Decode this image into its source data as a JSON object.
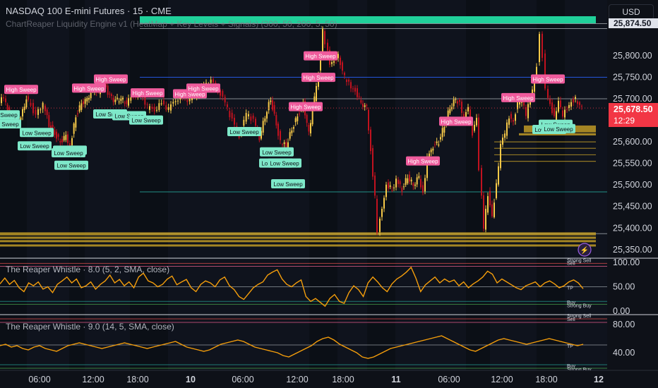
{
  "header": {
    "title": "NASDAQ 100 E-mini Futures · 15 · CME",
    "study": "ChartReaper Liquidity Engine v1 (HeatMap + Key Levels + Signals) (300, 50, 200, 5, 50)",
    "currency": "USD"
  },
  "colors": {
    "bg": "#0e1118",
    "session": "#131a2b",
    "up": "#f7c948",
    "down": "#c1121f",
    "high_sweep": "#ef5b9c",
    "low_sweep": "#7ee8c9",
    "osc_line": "#f59e0b",
    "level_gold": "#c9a227"
  },
  "price_axis": {
    "ticks": [
      "25,874.50",
      "25,800.00",
      "25,750.00",
      "25,700.00",
      "25,600.00",
      "25,550.00",
      "25,500.00",
      "25,450.00",
      "25,400.00",
      "25,350.00"
    ],
    "current_price": "25,678.50",
    "countdown": "12:29"
  },
  "time_axis": {
    "labels": [
      "06:00",
      "12:00",
      "18:00",
      "10",
      "06:00",
      "12:00",
      "18:00",
      "11",
      "06:00",
      "12:00",
      "18:00",
      "12"
    ]
  },
  "oscillators": [
    {
      "title": "The Reaper Whistle · 8.0 (5, 2, SMA, close)",
      "ticks": [
        "100.00",
        "50.00",
        "0.00"
      ],
      "zone_labels": [
        "Strong Sell",
        "Sell",
        "TP",
        "Buy",
        "Strong Buy"
      ]
    },
    {
      "title": "The Reaper Whistle · 9.0 (14, 5, SMA, close)",
      "ticks": [
        "80.00",
        "40.00"
      ],
      "zone_labels": [
        "Strong Sell",
        "Sell",
        "TP",
        "Buy",
        "Strong Buy"
      ]
    }
  ],
  "chart_data": {
    "type": "candlestick",
    "title": "NASDAQ 100 E-mini Futures · 15 · CME",
    "ylim": [
      25330,
      25890
    ],
    "current_price": 25678.5,
    "key_levels": [
      25874.5,
      25863,
      25750,
      25700,
      25484,
      25387
    ],
    "price_path": [
      [
        0,
        25690
      ],
      [
        6,
        25705
      ],
      [
        14,
        25660
      ],
      [
        22,
        25640
      ],
      [
        30,
        25655
      ],
      [
        38,
        25700
      ],
      [
        45,
        25685
      ],
      [
        52,
        25660
      ],
      [
        62,
        25690
      ],
      [
        70,
        25640
      ],
      [
        78,
        25620
      ],
      [
        86,
        25600
      ],
      [
        94,
        25615
      ],
      [
        100,
        25590
      ],
      [
        108,
        25660
      ],
      [
        116,
        25690
      ],
      [
        124,
        25700
      ],
      [
        132,
        25720
      ],
      [
        140,
        25715
      ],
      [
        148,
        25735
      ],
      [
        156,
        25705
      ],
      [
        164,
        25695
      ],
      [
        172,
        25700
      ],
      [
        180,
        25690
      ],
      [
        190,
        25710
      ],
      [
        200,
        25715
      ],
      [
        210,
        25680
      ],
      [
        220,
        25675
      ],
      [
        230,
        25690
      ],
      [
        240,
        25675
      ],
      [
        250,
        25700
      ],
      [
        260,
        25705
      ],
      [
        270,
        25695
      ],
      [
        280,
        25710
      ],
      [
        290,
        25730
      ],
      [
        300,
        25740
      ],
      [
        310,
        25725
      ],
      [
        320,
        25690
      ],
      [
        330,
        25650
      ],
      [
        340,
        25615
      ],
      [
        350,
        25665
      ],
      [
        360,
        25650
      ],
      [
        368,
        25610
      ],
      [
        376,
        25660
      ],
      [
        384,
        25700
      ],
      [
        392,
        25640
      ],
      [
        398,
        25600
      ],
      [
        406,
        25590
      ],
      [
        414,
        25630
      ],
      [
        422,
        25660
      ],
      [
        430,
        25690
      ],
      [
        438,
        25620
      ],
      [
        446,
        25700
      ],
      [
        452,
        25760
      ],
      [
        458,
        25860
      ],
      [
        462,
        25830
      ],
      [
        468,
        25785
      ],
      [
        474,
        25790
      ],
      [
        480,
        25800
      ],
      [
        486,
        25760
      ],
      [
        492,
        25740
      ],
      [
        498,
        25730
      ],
      [
        504,
        25720
      ],
      [
        512,
        25690
      ],
      [
        520,
        25680
      ],
      [
        526,
        25580
      ],
      [
        532,
        25470
      ],
      [
        536,
        25390
      ],
      [
        542,
        25450
      ],
      [
        548,
        25500
      ],
      [
        556,
        25490
      ],
      [
        562,
        25510
      ],
      [
        570,
        25490
      ],
      [
        578,
        25520
      ],
      [
        586,
        25500
      ],
      [
        594,
        25520
      ],
      [
        600,
        25480
      ],
      [
        606,
        25560
      ],
      [
        614,
        25590
      ],
      [
        622,
        25600
      ],
      [
        630,
        25640
      ],
      [
        638,
        25680
      ],
      [
        646,
        25700
      ],
      [
        652,
        25690
      ],
      [
        658,
        25650
      ],
      [
        664,
        25680
      ],
      [
        670,
        25620
      ],
      [
        676,
        25660
      ],
      [
        680,
        25540
      ],
      [
        686,
        25400
      ],
      [
        692,
        25480
      ],
      [
        698,
        25430
      ],
      [
        704,
        25500
      ],
      [
        710,
        25590
      ],
      [
        716,
        25620
      ],
      [
        722,
        25660
      ],
      [
        728,
        25650
      ],
      [
        734,
        25690
      ],
      [
        740,
        25700
      ],
      [
        746,
        25660
      ],
      [
        752,
        25705
      ],
      [
        758,
        25740
      ],
      [
        762,
        25780
      ],
      [
        766,
        25845
      ],
      [
        770,
        25800
      ],
      [
        774,
        25720
      ],
      [
        780,
        25690
      ],
      [
        786,
        25655
      ],
      [
        792,
        25690
      ],
      [
        798,
        25660
      ],
      [
        804,
        25680
      ],
      [
        810,
        25695
      ],
      [
        816,
        25700
      ],
      [
        822,
        25680
      ],
      [
        826,
        25678.5
      ]
    ],
    "signals": [
      {
        "label": "High Sweep",
        "kind": "high",
        "x": 30,
        "price": 25721
      },
      {
        "label": "High Sweep",
        "kind": "high",
        "x": 126,
        "price": 25724
      },
      {
        "label": "High Sweep",
        "kind": "high",
        "x": 157,
        "price": 25745
      },
      {
        "label": "High Sweep",
        "kind": "high",
        "x": 209,
        "price": 25713
      },
      {
        "label": "High Sweep",
        "kind": "high",
        "x": 269,
        "price": 25711
      },
      {
        "label": "High Sweep",
        "kind": "high",
        "x": 288,
        "price": 25724
      },
      {
        "label": "High Sweep",
        "kind": "high",
        "x": 433,
        "price": 25681
      },
      {
        "label": "High Sweep",
        "kind": "high",
        "x": 451,
        "price": 25749
      },
      {
        "label": "High Sweep",
        "kind": "high",
        "x": 454,
        "price": 25799
      },
      {
        "label": "High Sweep",
        "kind": "high",
        "x": 599,
        "price": 25555
      },
      {
        "label": "High Sweep",
        "kind": "high",
        "x": 646,
        "price": 25647
      },
      {
        "label": "High Sweep",
        "kind": "high",
        "x": 734,
        "price": 25702
      },
      {
        "label": "High Sweep",
        "kind": "high",
        "x": 776,
        "price": 25745
      },
      {
        "label": "Low Sweep",
        "kind": "low",
        "x": 4,
        "price": 25662
      },
      {
        "label": "Low Sweep",
        "kind": "low",
        "x": 6,
        "price": 25641
      },
      {
        "label": "Low Sweep",
        "kind": "low",
        "x": 52,
        "price": 25621
      },
      {
        "label": "Low Sweep",
        "kind": "low",
        "x": 49,
        "price": 25590
      },
      {
        "label": "Low Sweep",
        "kind": "low",
        "x": 99,
        "price": 25580
      },
      {
        "label": "Low Sweep",
        "kind": "low",
        "x": 97,
        "price": 25574
      },
      {
        "label": "Low Sweep",
        "kind": "low",
        "x": 101,
        "price": 25545
      },
      {
        "label": "Low Sweep",
        "kind": "low",
        "x": 156,
        "price": 25664
      },
      {
        "label": "Low Sweep",
        "kind": "low",
        "x": 183,
        "price": 25660
      },
      {
        "label": "Low Sweep",
        "kind": "low",
        "x": 207,
        "price": 25650
      },
      {
        "label": "Low Sweep",
        "kind": "low",
        "x": 346,
        "price": 25623
      },
      {
        "label": "Low Sweep",
        "kind": "low",
        "x": 392,
        "price": 25576
      },
      {
        "label": "Low Sweep",
        "kind": "low",
        "x": 391,
        "price": 25550
      },
      {
        "label": "Low Sweep",
        "kind": "low",
        "x": 403,
        "price": 25550
      },
      {
        "label": "Low Sweep",
        "kind": "low",
        "x": 408,
        "price": 25502
      },
      {
        "label": "Low Sweep",
        "kind": "low",
        "x": 778,
        "price": 25628
      },
      {
        "label": "Low Sweep",
        "kind": "low",
        "x": 787,
        "price": 25640
      },
      {
        "label": "Low Sweep",
        "kind": "low",
        "x": 791,
        "price": 25630
      }
    ],
    "oscillator_1": {
      "ylim": [
        0,
        100
      ],
      "values": [
        56,
        68,
        55,
        63,
        48,
        40,
        58,
        52,
        60,
        45,
        50,
        38,
        55,
        62,
        70,
        58,
        66,
        48,
        52,
        60,
        45,
        55,
        62,
        74,
        58,
        65,
        52,
        60,
        48,
        70,
        78,
        62,
        58,
        50,
        55,
        66,
        72,
        54,
        60,
        65,
        48,
        40,
        55,
        62,
        58,
        50,
        64,
        70,
        52,
        44,
        30,
        24,
        36,
        48,
        55,
        60,
        74,
        80,
        85,
        66,
        55,
        50,
        58,
        64,
        30,
        20,
        26,
        18,
        10,
        26,
        34,
        20,
        16,
        38,
        52,
        44,
        30,
        58,
        70,
        60,
        48,
        40,
        56,
        66,
        72,
        80,
        90,
        68,
        40,
        54,
        62,
        70,
        58,
        66,
        60,
        64,
        52,
        60,
        48,
        56,
        62,
        70,
        82,
        76,
        58,
        66,
        60,
        54,
        48,
        44,
        52,
        56,
        60,
        50,
        58,
        62,
        56,
        48,
        52,
        60,
        64,
        58,
        46
      ]
    },
    "oscillator_2": {
      "ylim": [
        0,
        100
      ],
      "values": [
        50,
        52,
        48,
        50,
        46,
        44,
        48,
        50,
        46,
        44,
        42,
        46,
        50,
        52,
        54,
        52,
        50,
        48,
        46,
        48,
        50,
        52,
        54,
        52,
        50,
        48,
        46,
        48,
        50,
        52,
        54,
        56,
        52,
        48,
        46,
        44,
        42,
        44,
        48,
        52,
        54,
        56,
        58,
        56,
        52,
        48,
        46,
        44,
        42,
        40,
        36,
        34,
        38,
        42,
        46,
        50,
        56,
        60,
        62,
        58,
        52,
        48,
        44,
        40,
        34,
        32,
        34,
        38,
        42,
        46,
        48,
        50,
        52,
        54,
        56,
        58,
        60,
        62,
        64,
        60,
        56,
        52,
        48,
        44,
        42,
        46,
        50,
        54,
        58,
        60,
        58,
        56,
        54,
        52,
        54,
        56,
        58,
        60,
        58,
        56,
        54,
        52,
        50,
        52
      ]
    }
  }
}
